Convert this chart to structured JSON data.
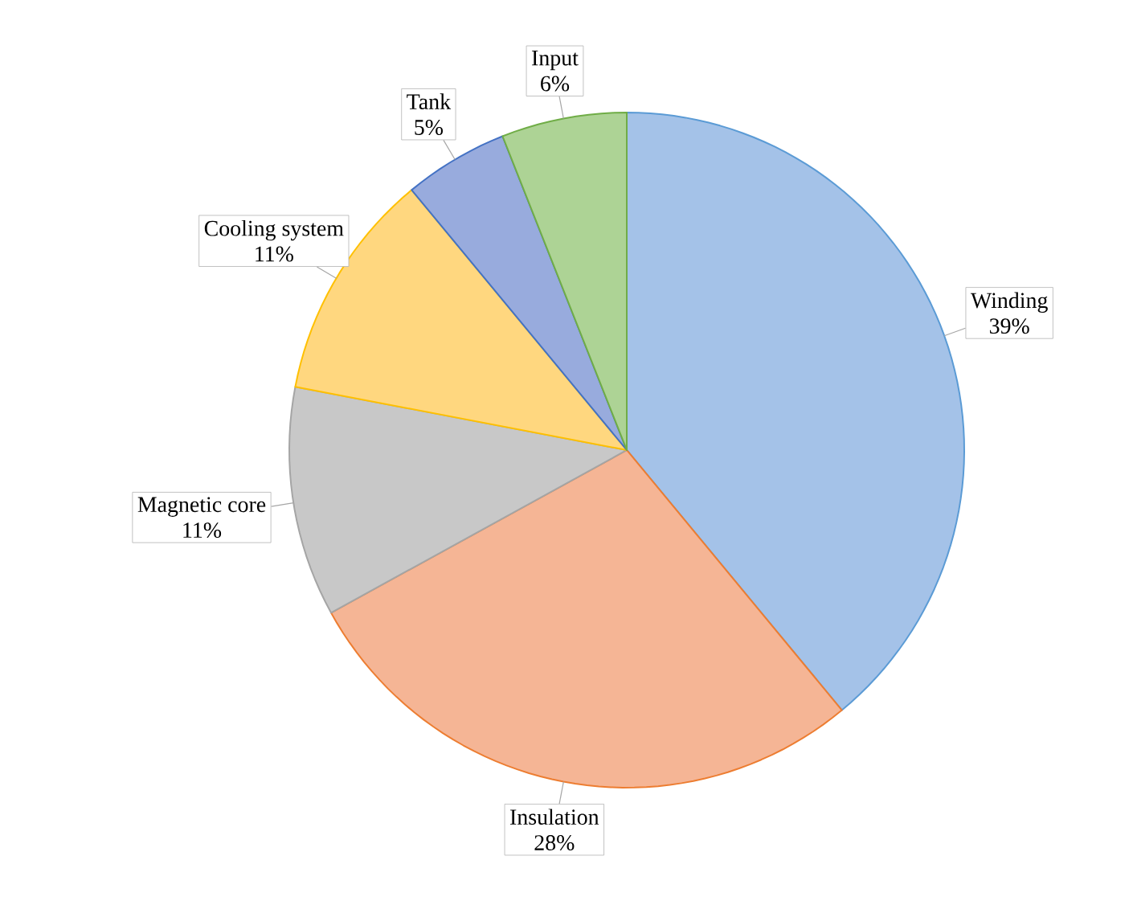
{
  "chart_data": {
    "type": "pie",
    "categories": [
      "Winding",
      "Insulation",
      "Magnetic core",
      "Cooling system",
      "Tank",
      "Input"
    ],
    "values": [
      39,
      28,
      11,
      11,
      5,
      6
    ],
    "value_labels": [
      "39%",
      "28%",
      "11%",
      "11%",
      "5%",
      "6%"
    ],
    "colors": [
      "#a4c2e8",
      "#f5b595",
      "#c8c8c8",
      "#ffd77f",
      "#98abdd",
      "#add395"
    ]
  }
}
